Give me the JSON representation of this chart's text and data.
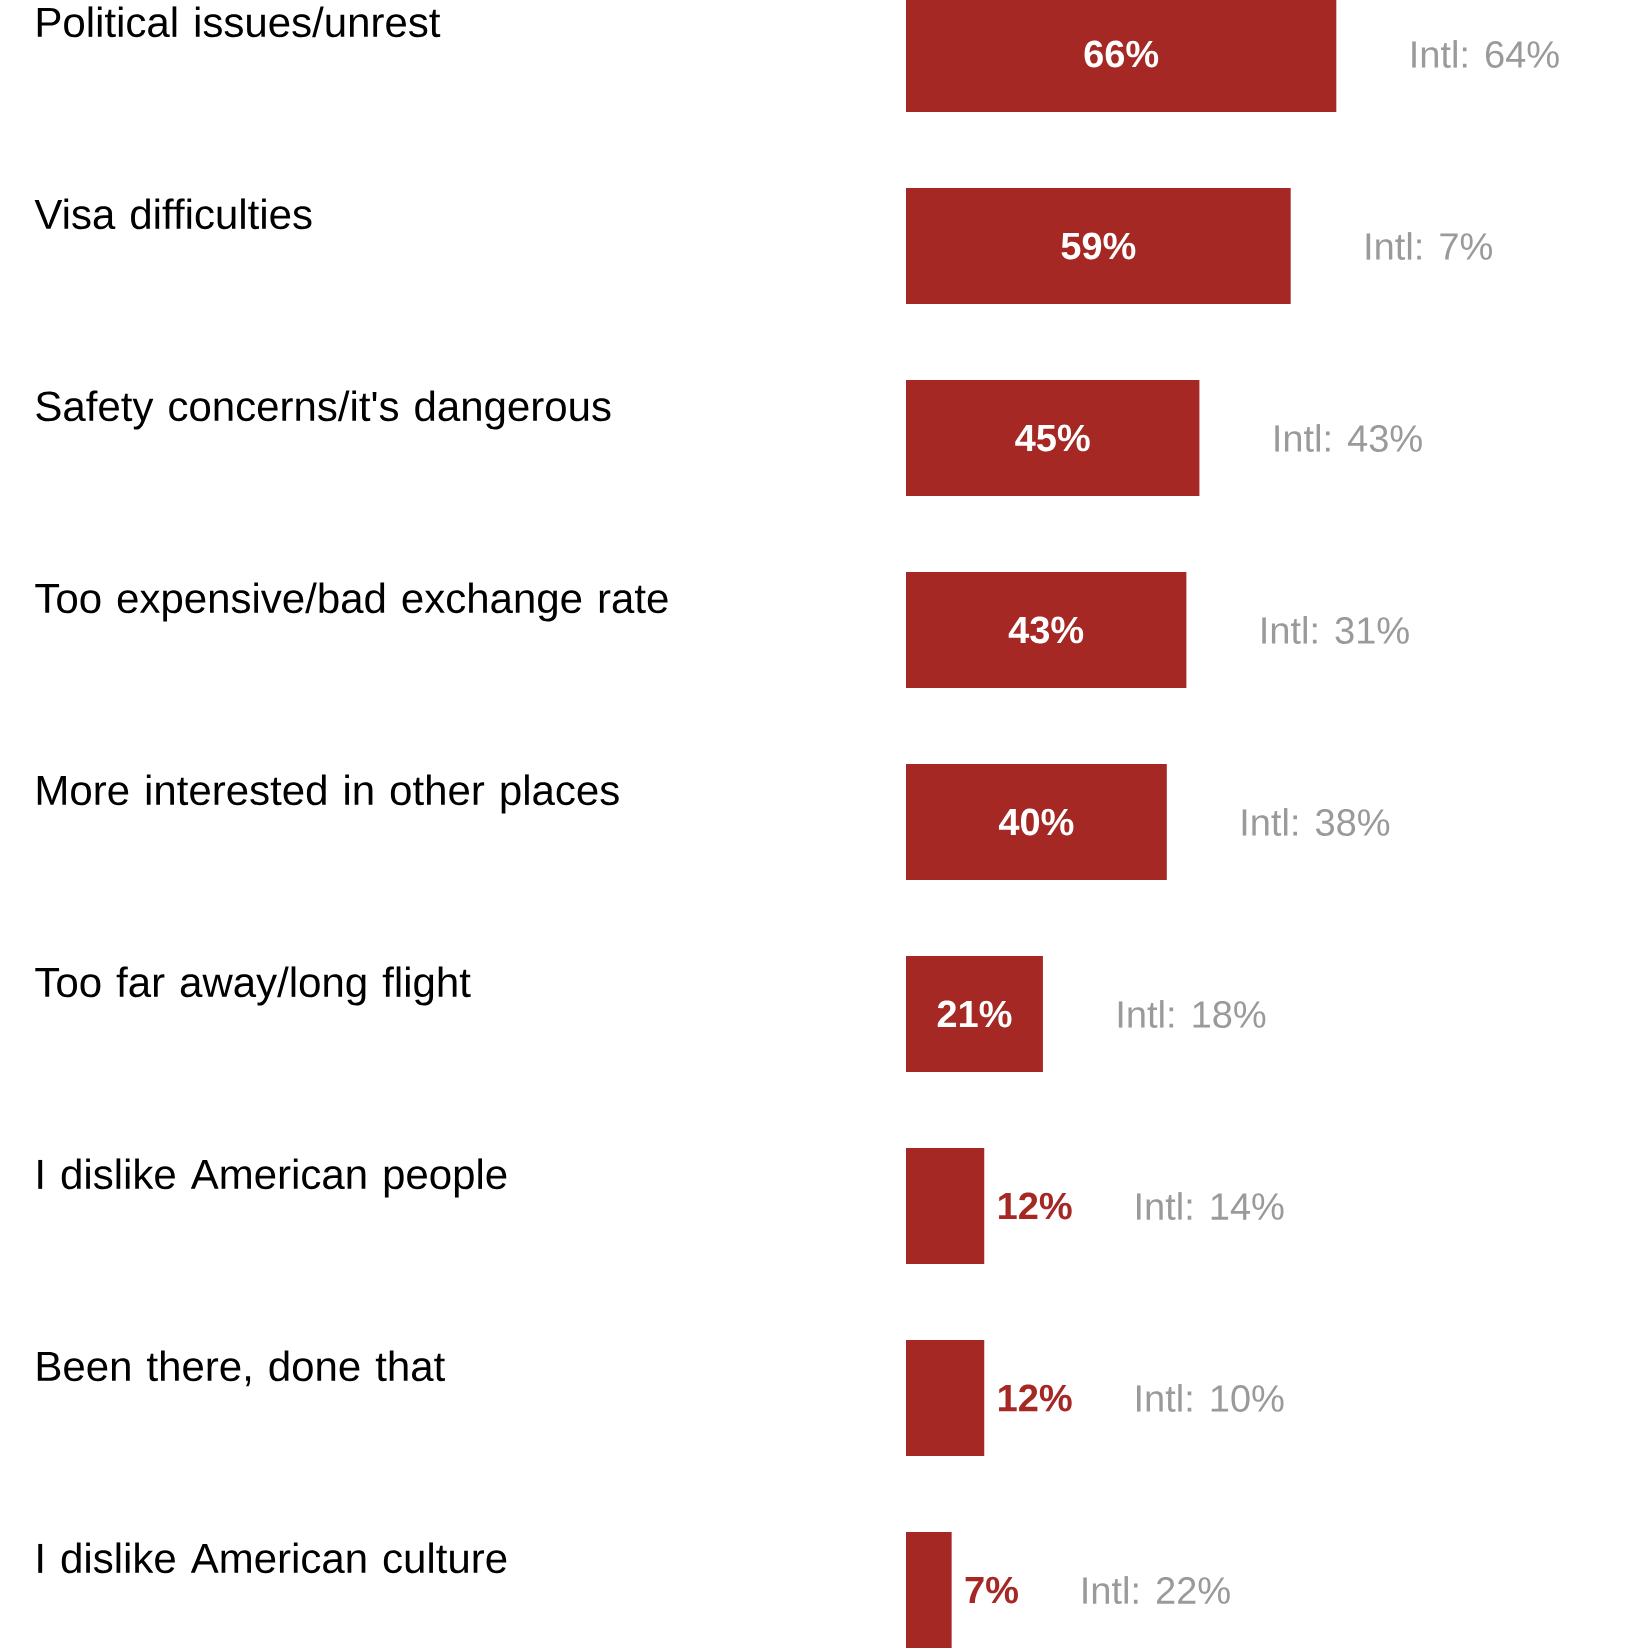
{
  "chart_data": {
    "type": "bar",
    "orientation": "horizontal",
    "color": "#a52824",
    "categories": [
      "Political issues/unrest",
      "Visa difficulties",
      "Safety concerns/it's dangerous",
      "Too expensive/bad exchange rate",
      "More interested in other places",
      "Too far away/long flight",
      "I dislike American people",
      "Been there, done that",
      "I dislike American culture"
    ],
    "values": [
      66,
      59,
      45,
      43,
      40,
      21,
      12,
      12,
      7
    ],
    "value_labels": [
      "66%",
      "59%",
      "45%",
      "43%",
      "40%",
      "21%",
      "12%",
      "12%",
      "7%"
    ],
    "annotations": [
      "Intl: 64%",
      "Intl: 7%",
      "Intl: 43%",
      "Intl: 31%",
      "Intl: 38%",
      "Intl: 18%",
      "Intl: 14%",
      "Intl: 10%",
      "Intl: 22%"
    ]
  }
}
